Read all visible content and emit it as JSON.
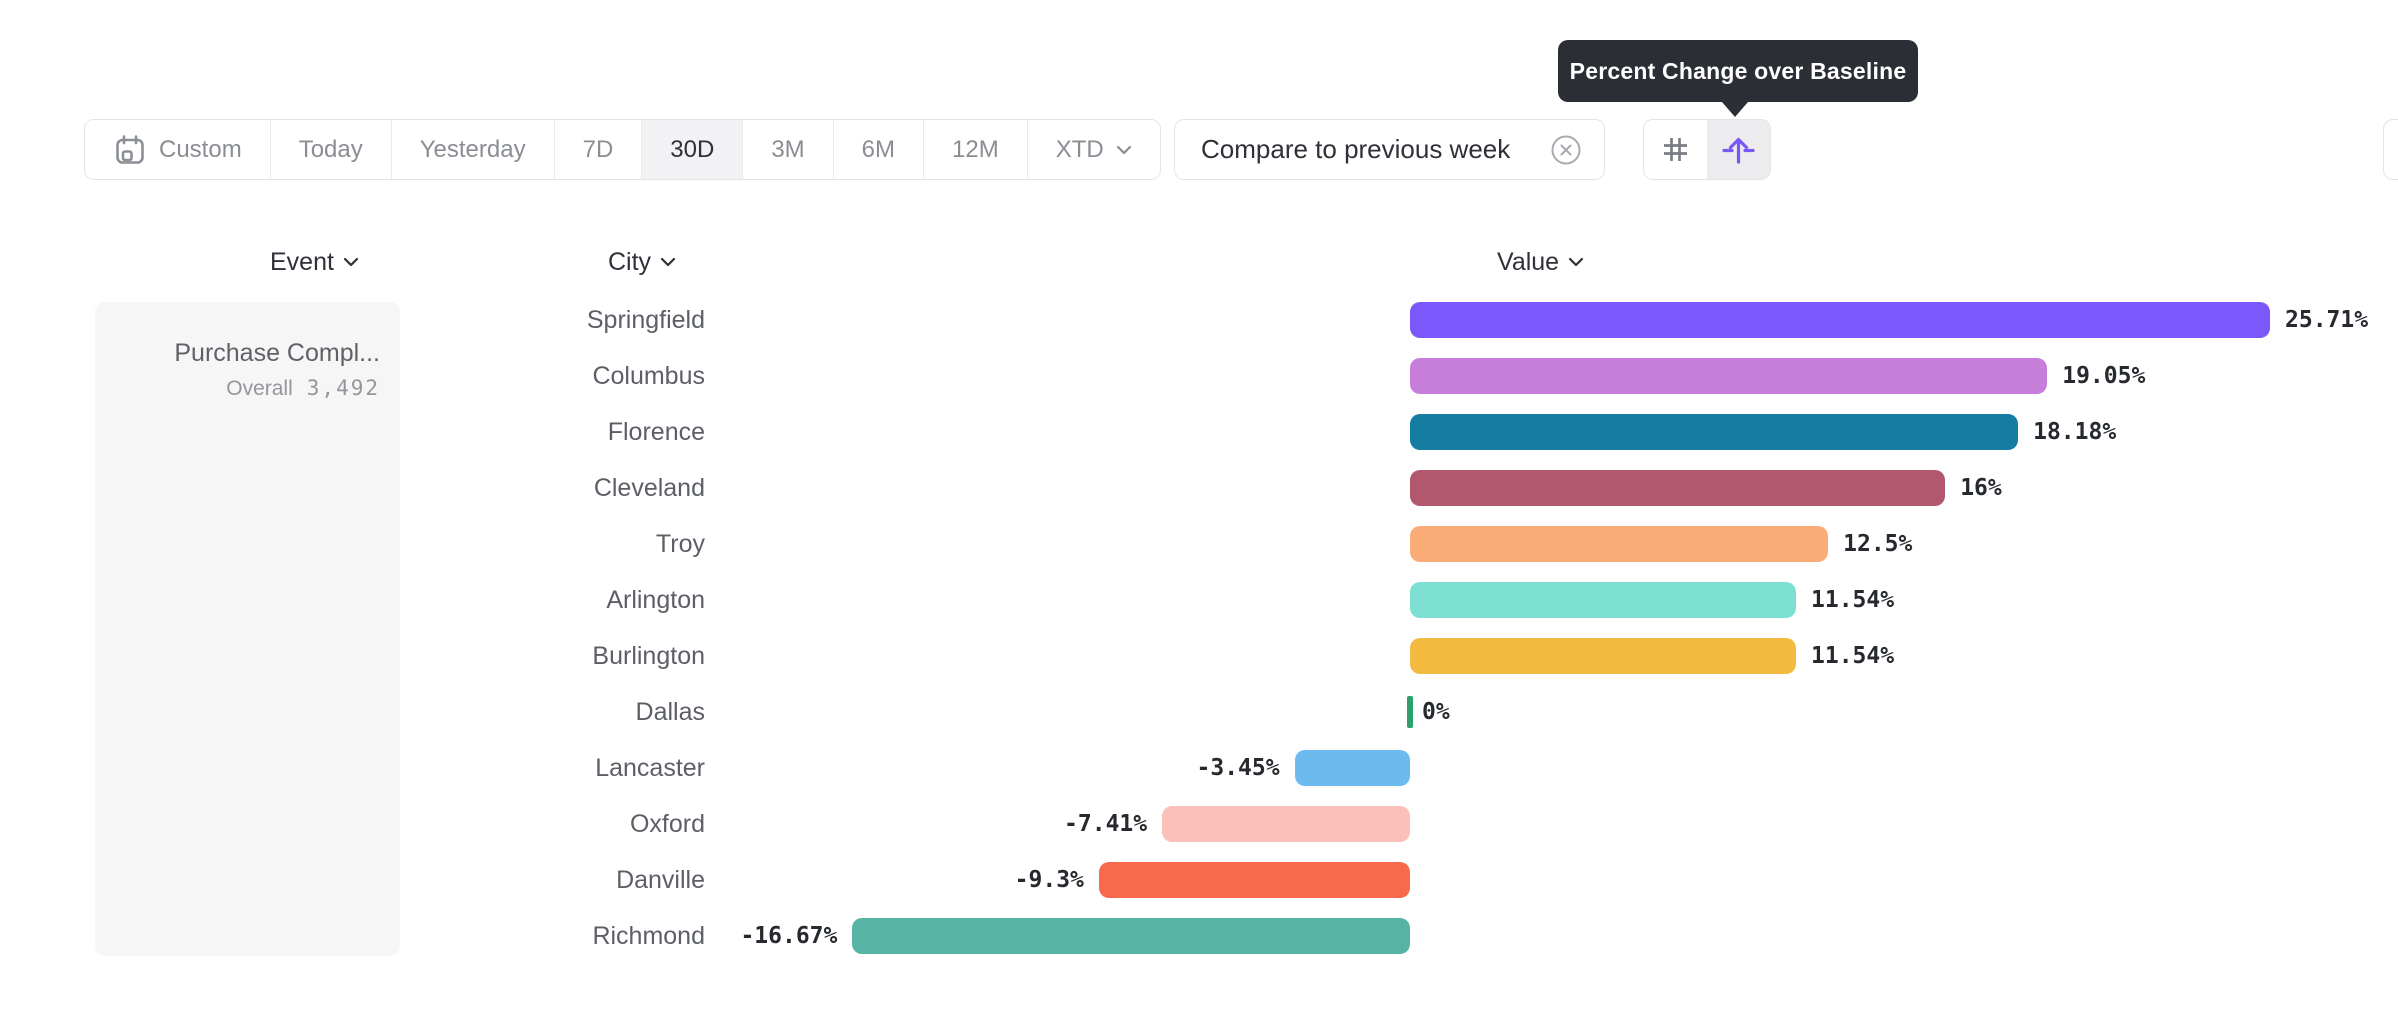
{
  "tooltip": {
    "text": "Percent Change over Baseline"
  },
  "toolbar": {
    "date_ranges": [
      {
        "label": "Custom",
        "icon": "calendar-icon",
        "selected": false
      },
      {
        "label": "Today",
        "selected": false
      },
      {
        "label": "Yesterday",
        "selected": false
      },
      {
        "label": "7D",
        "selected": false
      },
      {
        "label": "30D",
        "selected": true
      },
      {
        "label": "3M",
        "selected": false
      },
      {
        "label": "6M",
        "selected": false
      },
      {
        "label": "12M",
        "selected": false
      },
      {
        "label": "XTD",
        "selected": false,
        "chevron": true
      }
    ],
    "compare_chip": {
      "label": "Compare to previous week",
      "dismiss_icon": "close-circle-icon"
    },
    "view_toggles": [
      {
        "icon": "grid-icon",
        "selected": false
      },
      {
        "icon": "baseline-arrow-icon",
        "selected": true,
        "tooltip": "Percent Change over Baseline"
      }
    ]
  },
  "columns": {
    "event": "Event",
    "city": "City",
    "value": "Value"
  },
  "event_panel": {
    "event_name": "Purchase Compl...",
    "overall_label": "Overall",
    "overall_value": "3,492"
  },
  "chart_data": {
    "type": "bar",
    "orientation": "horizontal",
    "title": "Percent Change over Baseline",
    "categories": [
      "Springfield",
      "Columbus",
      "Florence",
      "Cleveland",
      "Troy",
      "Arlington",
      "Burlington",
      "Dallas",
      "Lancaster",
      "Oxford",
      "Danville",
      "Richmond"
    ],
    "values": [
      25.71,
      19.05,
      18.18,
      16,
      12.5,
      11.54,
      11.54,
      0,
      -3.45,
      -7.41,
      -9.3,
      -16.67
    ],
    "labels": [
      "25.71%",
      "19.05%",
      "18.18%",
      "16%",
      "12.5%",
      "11.54%",
      "11.54%",
      "0%",
      "-3.45%",
      "-7.41%",
      "-9.3%",
      "-16.67%"
    ],
    "colors": [
      "#7A58FC",
      "#C77EDB",
      "#147DA1",
      "#B1586E",
      "#FBAD78",
      "#7EE0D2",
      "#F3BC40",
      "#2EA06B",
      "#6CBAF0",
      "#FBC1B8",
      "#F96A4C",
      "#57B4A4"
    ],
    "unit": "%",
    "xlim": [
      -16.67,
      25.71
    ],
    "grid": false,
    "legend": false,
    "value_label_position": "end",
    "zero_value_color": "#2EA06B"
  },
  "accent_color": "#7857F7"
}
